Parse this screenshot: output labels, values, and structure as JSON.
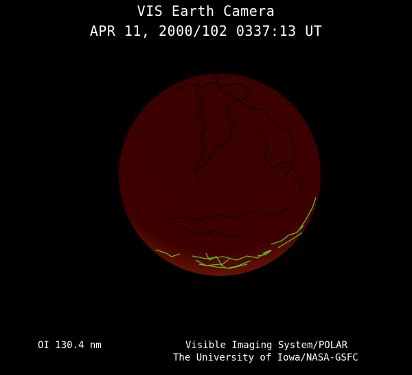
{
  "header": {
    "title": "VIS Earth Camera",
    "timestamp": "APR 11, 2000/102 0337:13 UT"
  },
  "footer": {
    "wavelength": "OI  130.4 nm",
    "credit_line1": "Visible Imaging System/POLAR",
    "credit_line2": "The University of Iowa/NASA-GSFC"
  },
  "image": {
    "disk_color": "#3a0000",
    "coastline_color": "#000000",
    "aurora_coastline_color": "#5ec21a"
  }
}
